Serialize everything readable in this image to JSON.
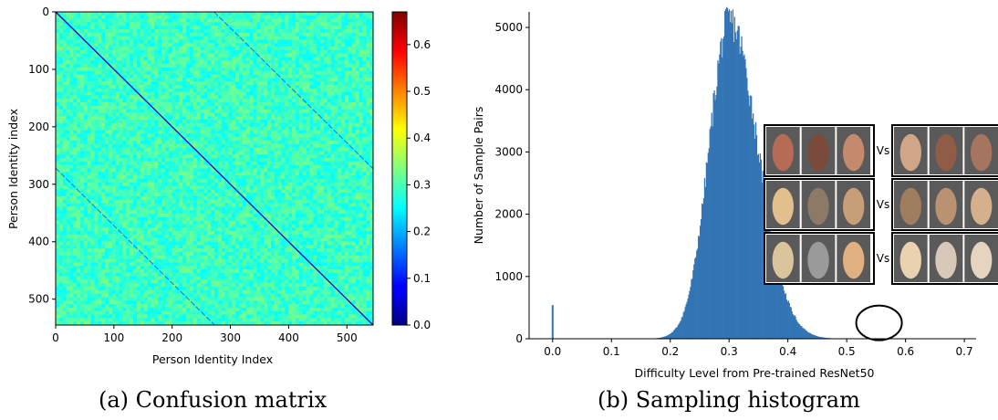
{
  "chart_data": [
    {
      "type": "heatmap",
      "caption": "(a) Confusion matrix",
      "xlabel": "Person Identity Index",
      "ylabel": "Person Identity index",
      "xticks": [
        0,
        100,
        200,
        300,
        400,
        500
      ],
      "yticks": [
        0,
        100,
        200,
        300,
        400,
        500
      ],
      "xlim": [
        0,
        545
      ],
      "ylim": [
        545,
        0
      ],
      "size": 545,
      "background_value_range": [
        0.25,
        0.33
      ],
      "diagonal_value": 0.05,
      "off_diagonal_bands": [
        {
          "row_start": 0,
          "col_start": 272,
          "value": 0.17
        },
        {
          "row_start": 272,
          "col_start": 0,
          "value": 0.17
        }
      ],
      "colormap": "jet",
      "colorbar": {
        "min": 0.0,
        "max": 0.67,
        "ticks": [
          0.0,
          0.1,
          0.2,
          0.3,
          0.4,
          0.5,
          0.6
        ]
      }
    },
    {
      "type": "bar",
      "subtype": "histogram",
      "caption": "(b) Sampling histogram",
      "xlabel": "Difficulty Level from Pre-trained ResNet50",
      "ylabel": "Number of Sample Pairs",
      "xlim": [
        -0.04,
        0.72
      ],
      "ylim": [
        0,
        5250
      ],
      "xticks": [
        0.0,
        0.1,
        0.2,
        0.3,
        0.4,
        0.5,
        0.6,
        0.7
      ],
      "yticks": [
        0,
        1000,
        2000,
        3000,
        4000,
        5000
      ],
      "bar_color": "#3274b4",
      "distribution": {
        "peak_x": 0.3,
        "peak_count": 5100,
        "left_sigma": 0.035,
        "right_sigma": 0.048
      },
      "spike": {
        "x": 0.0,
        "count": 540
      },
      "highlight_circle": {
        "center_x": 0.555,
        "center_y": 50
      },
      "inset": {
        "vs_label": "Vs",
        "rows": [
          {
            "left_faces": [
              "face-1a",
              "face-1b",
              "face-1c"
            ],
            "right_faces": [
              "face-1d",
              "face-1e",
              "face-1f"
            ]
          },
          {
            "left_faces": [
              "face-2a",
              "face-2b",
              "face-2c"
            ],
            "right_faces": [
              "face-2d",
              "face-2e",
              "face-2f"
            ]
          },
          {
            "left_faces": [
              "face-3a",
              "face-3b",
              "face-3c"
            ],
            "right_faces": [
              "face-3d",
              "face-3e",
              "face-3f"
            ]
          }
        ]
      }
    }
  ]
}
